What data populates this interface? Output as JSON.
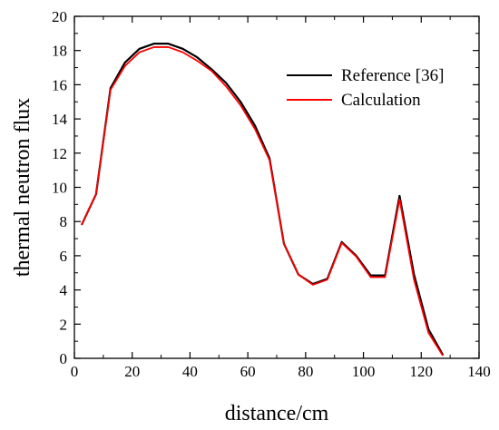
{
  "chart_data": {
    "type": "line",
    "title": "",
    "xlabel": "distance/cm",
    "ylabel": "thermal neutron flux",
    "xlim": [
      0,
      140
    ],
    "ylim": [
      0,
      20
    ],
    "xticks": [
      0,
      20,
      40,
      60,
      80,
      100,
      120,
      140
    ],
    "yticks": [
      0,
      2,
      4,
      6,
      8,
      10,
      12,
      14,
      16,
      18,
      20
    ],
    "grid": false,
    "legend_position": "top-right",
    "x": [
      2.5,
      7.5,
      12.5,
      17.5,
      22.5,
      27.5,
      32.5,
      37.5,
      42.5,
      47.5,
      52.5,
      57.5,
      62.5,
      67.5,
      72.5,
      77.5,
      82.5,
      87.5,
      92.5,
      97.5,
      102.5,
      107.5,
      112.5,
      117.5,
      122.5,
      127.5
    ],
    "series": [
      {
        "name": "Reference [36]",
        "color": "#000000",
        "values": [
          7.8,
          9.6,
          15.8,
          17.3,
          18.1,
          18.4,
          18.4,
          18.1,
          17.6,
          16.9,
          16.1,
          15.0,
          13.6,
          11.7,
          6.7,
          4.9,
          4.35,
          4.65,
          6.8,
          6.0,
          4.85,
          4.85,
          9.5,
          4.9,
          1.7,
          0.2
        ]
      },
      {
        "name": "Calculation",
        "color": "#ff0000",
        "values": [
          7.8,
          9.6,
          15.7,
          17.1,
          17.9,
          18.2,
          18.2,
          17.9,
          17.4,
          16.8,
          15.9,
          14.8,
          13.4,
          11.6,
          6.7,
          4.9,
          4.3,
          4.6,
          6.75,
          5.95,
          4.75,
          4.75,
          9.3,
          4.6,
          1.5,
          0.15
        ]
      }
    ]
  }
}
